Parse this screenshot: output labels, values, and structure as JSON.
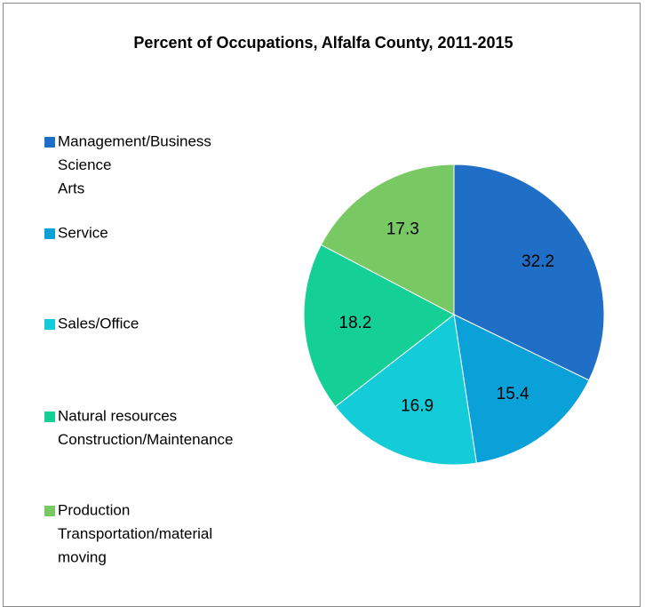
{
  "chart_data": {
    "type": "pie",
    "title": "Percent of Occupations, Alfalfa County, 2011-2015",
    "categories": [
      [
        "Management/Business",
        "Science",
        "Arts"
      ],
      [
        "Service"
      ],
      [
        "Sales/Office"
      ],
      [
        "Natural resources",
        "Construction/Maintenance"
      ],
      [
        "Production",
        "Transportation/material",
        "moving"
      ]
    ],
    "values": [
      32.2,
      15.4,
      16.9,
      18.2,
      17.3
    ],
    "colors": [
      "#1f6fc6",
      "#0aa0d8",
      "#13ccd8",
      "#14cf96",
      "#78c964"
    ],
    "legend": "left"
  }
}
